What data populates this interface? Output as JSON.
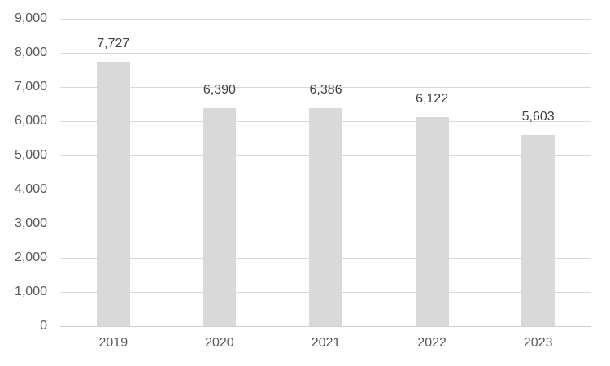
{
  "chart_data": {
    "type": "bar",
    "title": "",
    "xlabel": "",
    "ylabel": "",
    "categories": [
      "2019",
      "2020",
      "2021",
      "2022",
      "2023"
    ],
    "values": [
      7727,
      6390,
      6386,
      6122,
      5603
    ],
    "value_labels": [
      "7,727",
      "6,390",
      "6,386",
      "6,122",
      "5,603"
    ],
    "y_ticks": [
      0,
      1000,
      2000,
      3000,
      4000,
      5000,
      6000,
      7000,
      8000,
      9000
    ],
    "y_tick_labels": [
      "0",
      "1,000",
      "2,000",
      "3,000",
      "4,000",
      "5,000",
      "6,000",
      "7,000",
      "8,000",
      "9,000"
    ],
    "ylim": [
      0,
      9000
    ],
    "grid": true,
    "legend": false,
    "data_label_position": "outside-end"
  },
  "colors": {
    "background": "#ffffff",
    "bar_fill": "#d9d9d9",
    "gridline": "#d9d9d9",
    "axis_line": "#d0d0d0",
    "tick_text": "#595959",
    "data_label_text": "#404040"
  }
}
